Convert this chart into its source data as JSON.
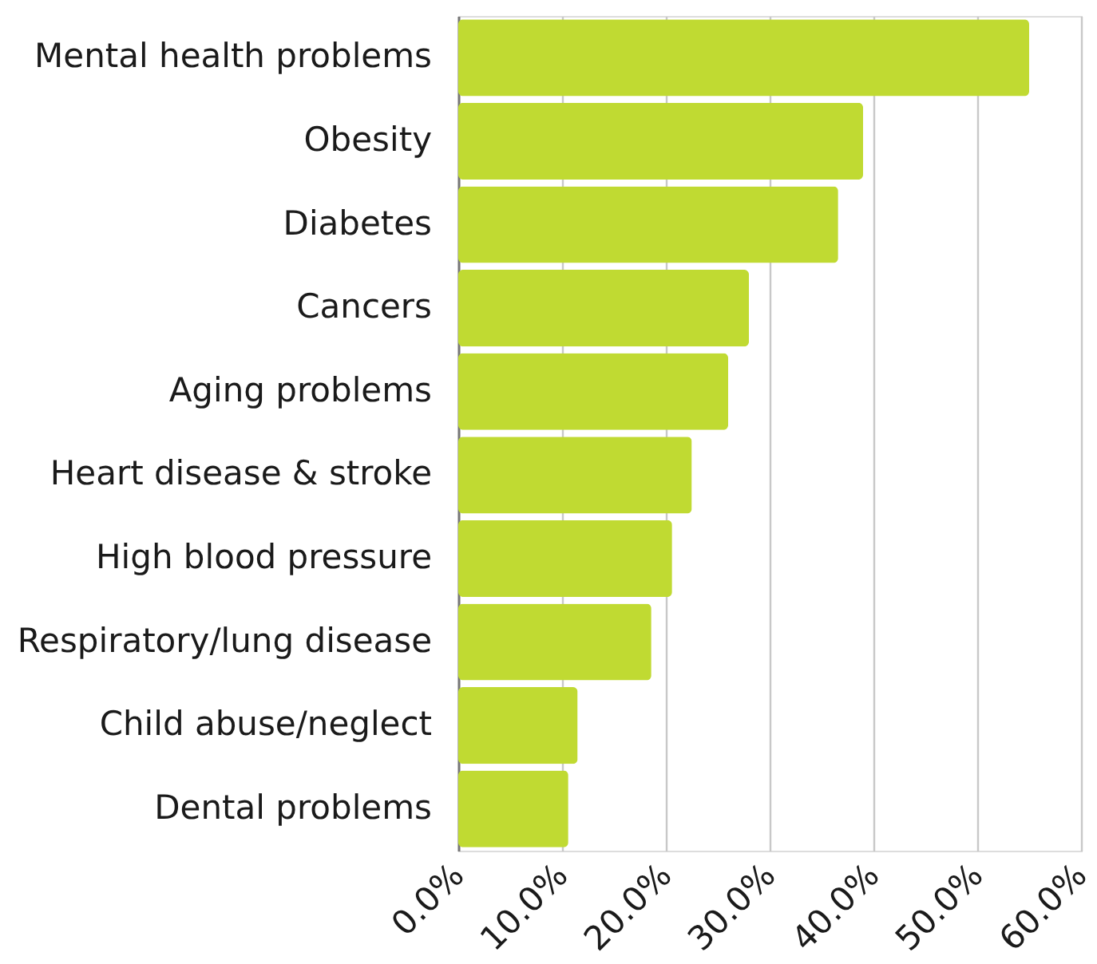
{
  "chart_data": {
    "type": "bar",
    "orientation": "horizontal",
    "categories": [
      "Mental health problems",
      "Obesity",
      "Diabetes",
      "Cancers",
      "Aging problems",
      "Heart disease & stroke",
      "High blood pressure",
      "Respiratory/lung disease",
      "Child abuse/neglect",
      "Dental problems"
    ],
    "values": [
      55.0,
      39.0,
      36.6,
      28.0,
      26.0,
      22.5,
      20.6,
      18.6,
      11.5,
      10.6
    ],
    "color": "#c0da32",
    "xlim": [
      0,
      60
    ],
    "xticks": [
      {
        "value": 0,
        "label": "0.0%"
      },
      {
        "value": 10,
        "label": "10.0%"
      },
      {
        "value": 20,
        "label": "20.0%"
      },
      {
        "value": 30,
        "label": "30.0%"
      },
      {
        "value": 40,
        "label": "40.0%"
      },
      {
        "value": 50,
        "label": "50.0%"
      },
      {
        "value": 60,
        "label": "60.0%"
      }
    ],
    "grid": "x"
  }
}
